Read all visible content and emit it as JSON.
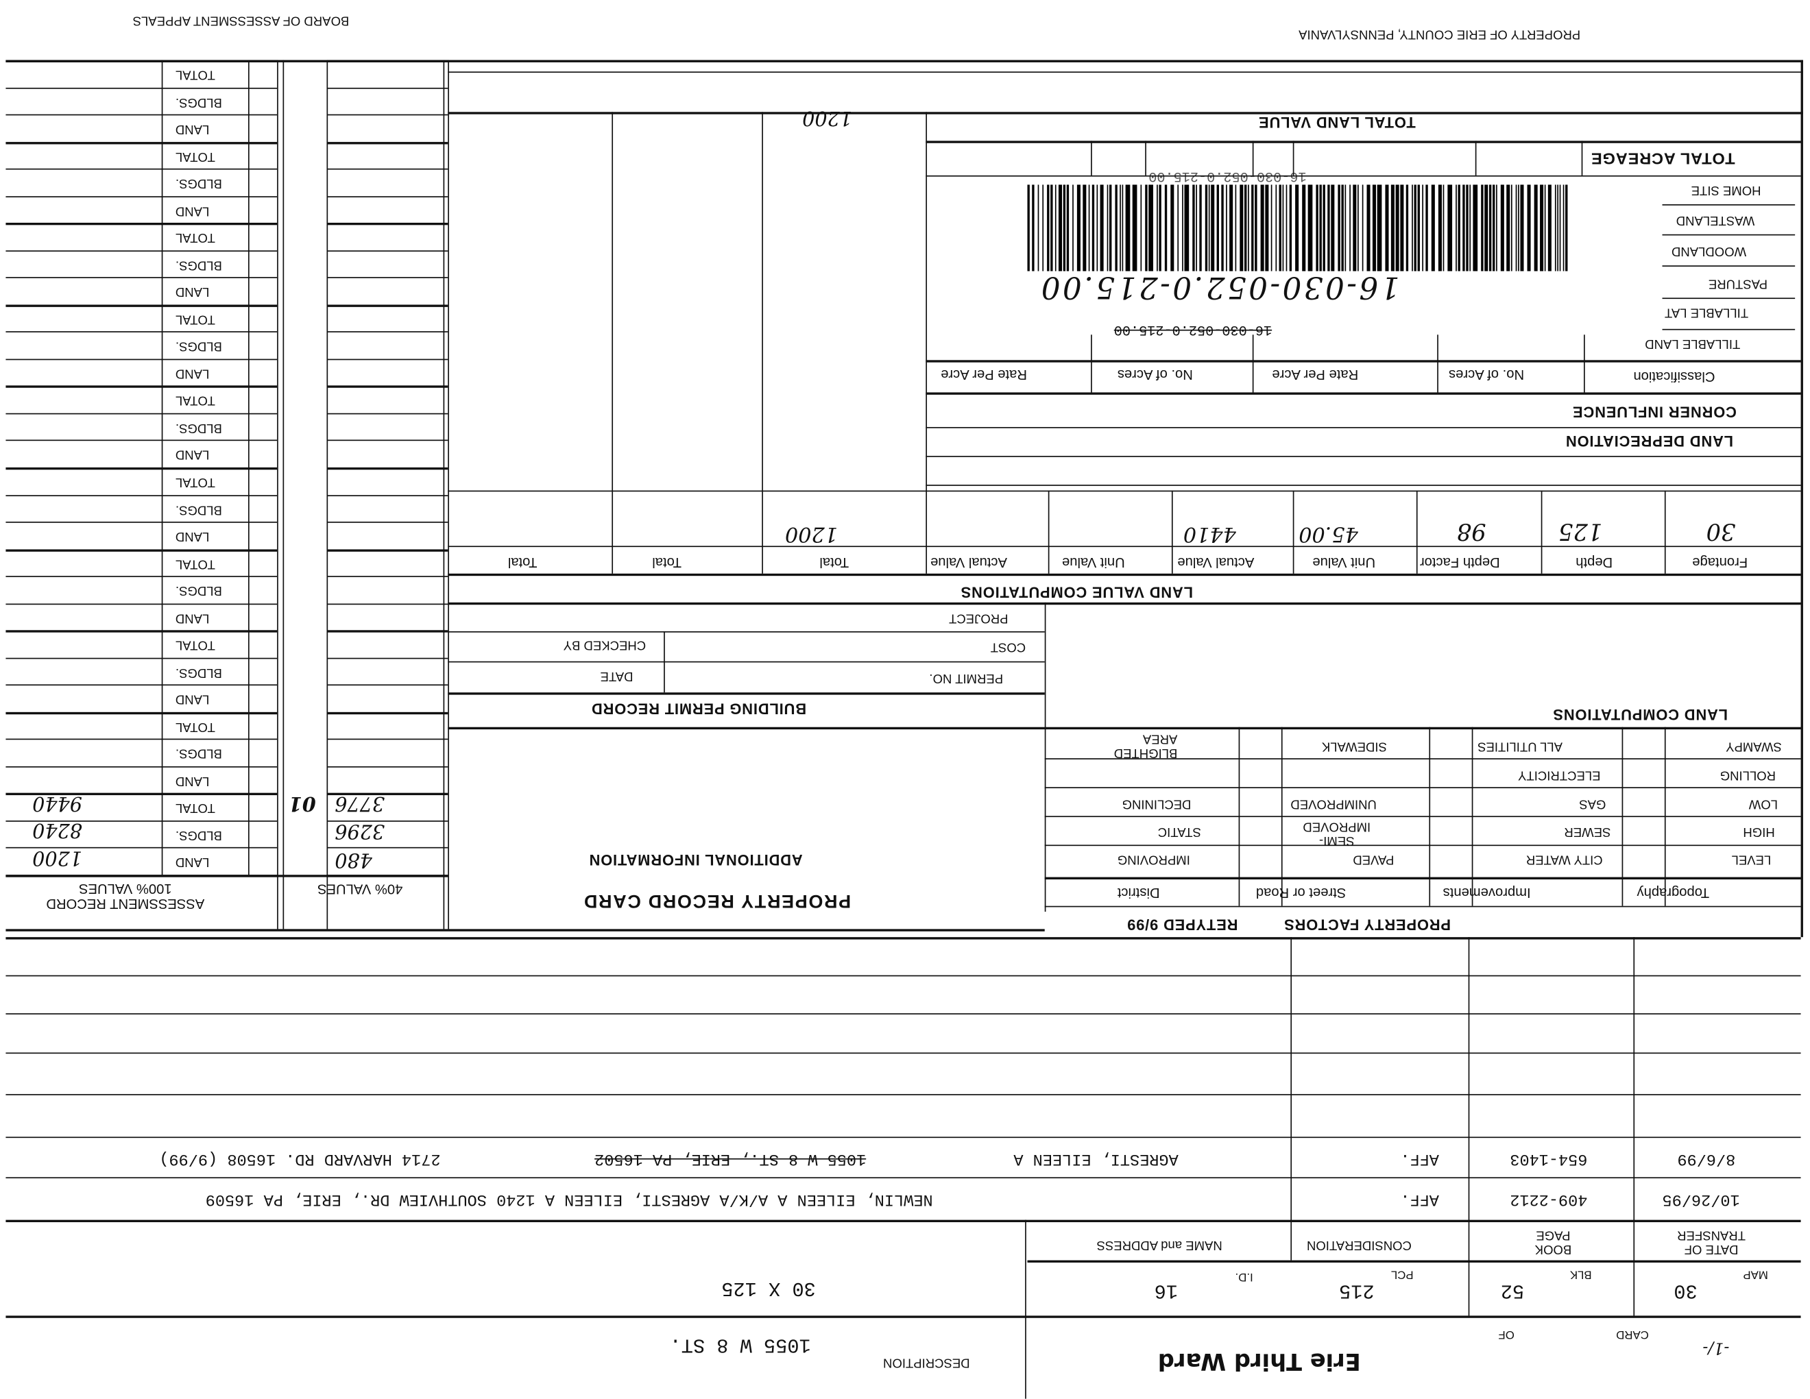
{
  "header": {
    "left_title": "BOARD OF ASSESSMENT APPEALS",
    "right_title": "PROPERTY OF ERIE COUNTY, PENNSYLVANIA"
  },
  "assessment": {
    "row_labels": [
      "TOTAL",
      "BLDGS.",
      "LAND"
    ],
    "title": "ASSESSMENT RECORD",
    "subtitle_100": "100% VALUES",
    "subtitle_40": "40% VALUES",
    "current": {
      "land_100": "1200",
      "bldgs_100": "8240",
      "total_100": "9440",
      "land_40": "480",
      "bldgs_40": "3296",
      "total_40": "3776",
      "code": "01"
    }
  },
  "card": {
    "title": "PROPERTY RECORD CARD",
    "additional_info": "ADDITIONAL INFORMATION"
  },
  "land_value": {
    "total_land_value_label": "TOTAL LAND VALUE",
    "total_land_value": "1200",
    "total_acreage_label": "TOTAL ACREAGE",
    "acreage_rows": [
      "HOME SITE",
      "WASTELAND",
      "WOODLAND",
      "PASTURE",
      "TILLABLE LAT",
      "TILLABLE LAND"
    ],
    "parcel_handwritten": "16-030-052.0-215.00",
    "parcel_struck": "16-030-052.0-215.00",
    "parcel_printed": "16-030-052.0-215.00",
    "classification_headers": [
      "Classification",
      "No. of Acres",
      "Rate Per Acre",
      "No. of Acres",
      "Rate Per Acre"
    ],
    "corner_influence": "CORNER INFLUENCE",
    "land_depreciation": "LAND DEPRECIATION",
    "computations_title": "LAND VALUE COMPUTATIONS",
    "computation_headers": [
      "Frontage",
      "Depth",
      "Depth Factor",
      "Unit Value",
      "Actual Value",
      "Unit Value",
      "Actual Value",
      "Total",
      "Total",
      "Total"
    ],
    "computation_values": {
      "frontage": "30",
      "depth": "125",
      "depth_factor": "98",
      "unit_value": "45.00",
      "actual_value": "4410",
      "total": "1200"
    }
  },
  "permit": {
    "title": "BUILDING PERMIT RECORD",
    "permit_no": "PERMIT NO.",
    "date": "DATE",
    "cost": "COST",
    "checked_by": "CHECKED BY",
    "project": "PROJECT"
  },
  "factors": {
    "title": "PROPERTY FACTORS",
    "retyped": "RETYPED 9/99",
    "land_computations": "LAND COMPUTATIONS",
    "headers": [
      "Topography",
      "Improvements",
      "Street or Road",
      "District"
    ],
    "topography": [
      "LEVEL",
      "HIGH",
      "LOW",
      "ROLLING",
      "SWAMPY"
    ],
    "improvements": [
      "CITY WATER",
      "SEWER",
      "GAS",
      "ELECTRICITY",
      "ALL UTILITIES"
    ],
    "street": [
      "PAVED",
      "SEMI-IMPROVED",
      "UNIMPROVED",
      "SIDEWALK"
    ],
    "district": [
      "IMPROVING",
      "STATIC",
      "DECLINING",
      "BLIGHTED AREA"
    ]
  },
  "transfers": {
    "headers": {
      "date": "DATE OF TRANSFER",
      "book_page": "BOOK PAGE",
      "consideration": "CONSIDERATION",
      "name_address": "NAME and ADDRESS"
    },
    "rows": [
      {
        "date": "8/6/99",
        "book_page": "654-1403",
        "consideration": "AFF.",
        "name": "AGRESTI, EILEEN A",
        "struck": "1055 W 8 ST., ERIE, PA  16502",
        "address": "2714 HARVARD RD.  16508  (9/99)"
      },
      {
        "date": "10/26/95",
        "book_page": "409-2212",
        "consideration": "AFF.",
        "name": "NEWLIN, EILEEN A A/K/A AGRESTI, EILEEN A   1240 SOUTHVIEW DR., ERIE, PA  16509"
      }
    ]
  },
  "parcel": {
    "map_label": "MAP",
    "map": "30",
    "blk_label": "BLK",
    "blk": "52",
    "pcl_label": "PCL",
    "pcl": "215",
    "id_label": "I.D.",
    "id": "16",
    "dimensions": "30 X 125",
    "card_label": "CARD",
    "of_label": "OF",
    "card_mark": "-1/-",
    "ward": "Erie Third Ward",
    "description_label": "DESCRIPTION",
    "description": "1055 W 8 ST."
  }
}
